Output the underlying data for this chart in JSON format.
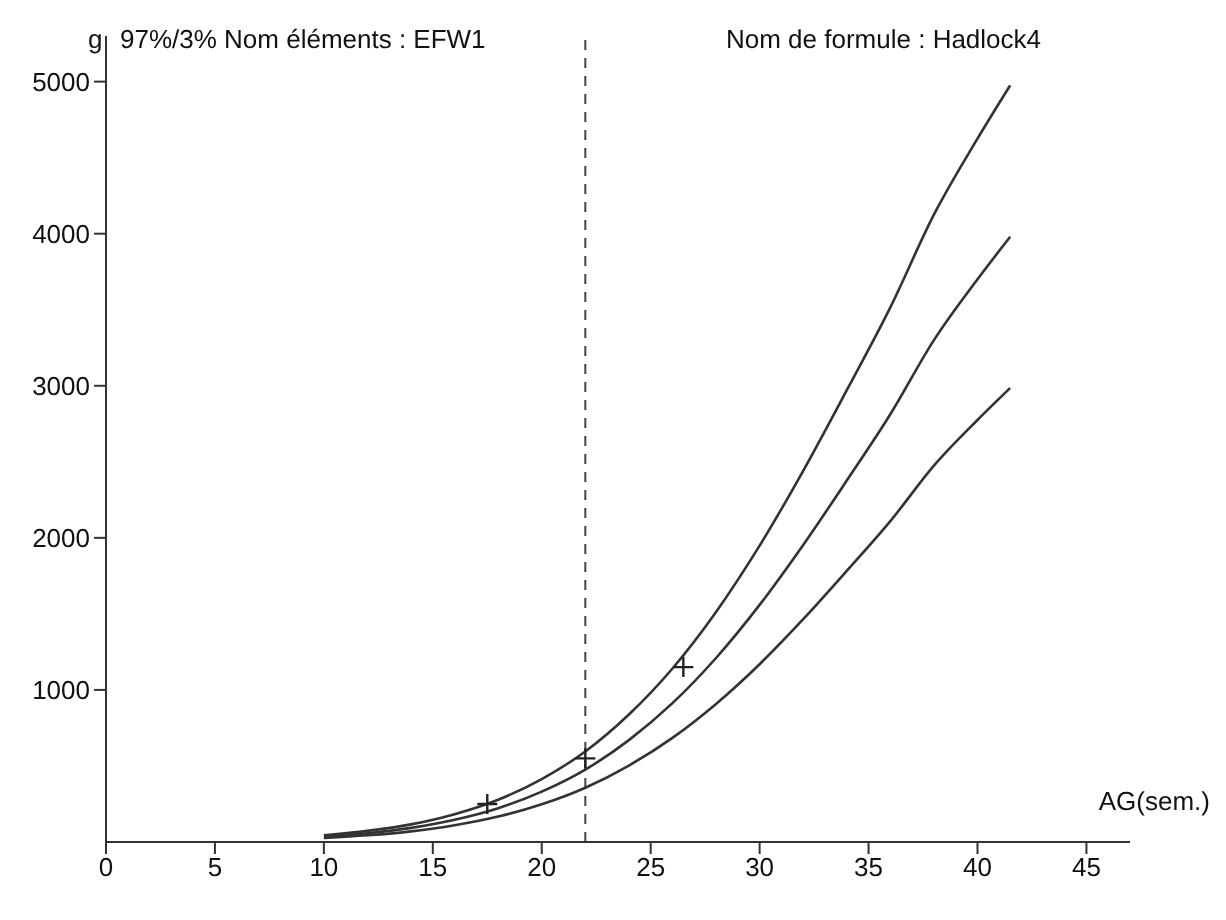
{
  "chart_data": {
    "type": "line",
    "title": "97%/3%  Nom éléments : EFW1",
    "subtitle": "Nom de formule : Hadlock4",
    "ylabel": "g",
    "xlabel": "AG(sem.)",
    "x": [
      10,
      12,
      14,
      16,
      18,
      20,
      22,
      24,
      26,
      28,
      30,
      32,
      34,
      36,
      38,
      40,
      41.5
    ],
    "series": [
      {
        "color": "#333333",
        "values": [
          44,
          73,
          116,
          183,
          278,
          414,
          595,
          838,
          1141,
          1513,
          1949,
          2441,
          2971,
          3516,
          4125,
          4625,
          4975
        ]
      },
      {
        "color": "#333333",
        "values": [
          35,
          58,
          93,
          146,
          222,
          331,
          476,
          670,
          913,
          1210,
          1559,
          1953,
          2377,
          2813,
          3300,
          3700,
          3980
        ]
      },
      {
        "color": "#333333",
        "values": [
          26,
          44,
          70,
          110,
          167,
          248,
          357,
          503,
          685,
          908,
          1169,
          1465,
          1783,
          2110,
          2475,
          2775,
          2985
        ]
      },
      {
        "type": "scatter",
        "color": "#222222",
        "marker": "cross",
        "x": [
          17.5,
          22,
          26.5
        ],
        "values": [
          250,
          550,
          1150
        ]
      }
    ],
    "marker": "none",
    "line_style": "solid",
    "xlim": [
      0,
      47
    ],
    "xticks": [
      0,
      5,
      10,
      15,
      20,
      25,
      30,
      35,
      40,
      45
    ],
    "ylim": [
      0,
      5300
    ],
    "yticks": [
      1000,
      2000,
      3000,
      4000,
      5000
    ],
    "ref_lines": [
      {
        "axis": "x",
        "value": 22,
        "line_style": "dashed",
        "color": "#444444"
      }
    ],
    "grid": false,
    "legend": false
  }
}
